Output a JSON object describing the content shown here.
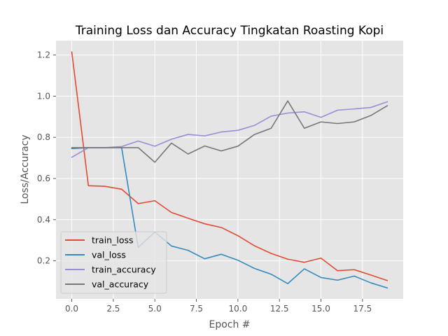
{
  "chart_data": {
    "type": "line",
    "title": "Training Loss dan Accuracy Tingkatan Roasting Kopi",
    "xlabel": "Epoch #",
    "ylabel": "Loss/Accuracy",
    "xlim": [
      -0.95,
      19.95
    ],
    "ylim": [
      0.015,
      1.27
    ],
    "xticks": [
      0,
      2.5,
      5,
      7.5,
      10,
      12.5,
      15,
      17.5
    ],
    "xtick_labels": [
      "0.0",
      "2.5",
      "5.0",
      "7.5",
      "10.0",
      "12.5",
      "15.0",
      "17.5"
    ],
    "yticks": [
      0.2,
      0.4,
      0.6,
      0.8,
      1.0,
      1.2
    ],
    "ytick_labels": [
      "0.2",
      "0.4",
      "0.6",
      "0.8",
      "1.0",
      "1.2"
    ],
    "grid": true,
    "legend_position": "lower-left",
    "x": [
      0,
      1,
      2,
      3,
      4,
      5,
      6,
      7,
      8,
      9,
      10,
      11,
      12,
      13,
      14,
      15,
      16,
      17,
      18,
      19
    ],
    "series": [
      {
        "name": "train_loss",
        "color": "#E24A33",
        "values": [
          1.215,
          0.565,
          0.562,
          0.548,
          0.478,
          0.492,
          0.435,
          0.407,
          0.38,
          0.362,
          0.322,
          0.273,
          0.236,
          0.208,
          0.193,
          0.213,
          0.152,
          0.157,
          0.131,
          0.104
        ]
      },
      {
        "name": "val_loss",
        "color": "#348ABD",
        "values": [
          0.745,
          0.75,
          0.75,
          0.75,
          0.265,
          0.34,
          0.272,
          0.251,
          0.21,
          0.232,
          0.203,
          0.163,
          0.135,
          0.089,
          0.161,
          0.119,
          0.106,
          0.126,
          0.093,
          0.068
        ]
      },
      {
        "name": "train_accuracy",
        "color": "#988ED5",
        "values": [
          0.703,
          0.75,
          0.75,
          0.755,
          0.782,
          0.757,
          0.791,
          0.814,
          0.807,
          0.826,
          0.834,
          0.858,
          0.903,
          0.918,
          0.924,
          0.897,
          0.932,
          0.938,
          0.945,
          0.973
        ]
      },
      {
        "name": "val_accuracy",
        "color": "#777777",
        "values": [
          0.75,
          0.75,
          0.75,
          0.75,
          0.75,
          0.679,
          0.772,
          0.719,
          0.758,
          0.734,
          0.757,
          0.814,
          0.844,
          0.977,
          0.844,
          0.875,
          0.867,
          0.875,
          0.906,
          0.954
        ]
      }
    ]
  }
}
